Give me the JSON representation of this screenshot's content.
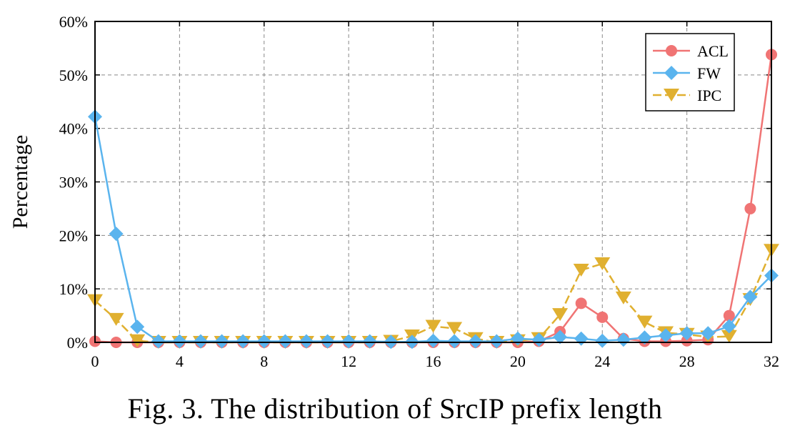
{
  "figure": {
    "caption": "Fig. 3. The distribution of SrcIP prefix length"
  },
  "chart_data": {
    "type": "line",
    "ylabel": "Percentage",
    "xlabel": "",
    "xlim": [
      0,
      32
    ],
    "ylim": [
      0,
      60
    ],
    "x_ticks": [
      0,
      4,
      8,
      12,
      16,
      20,
      24,
      28,
      32
    ],
    "y_ticks": [
      0,
      10,
      20,
      30,
      40,
      50,
      60
    ],
    "y_tick_suffix": "%",
    "grid": true,
    "legend_position": "top-right",
    "x": [
      0,
      1,
      2,
      3,
      4,
      5,
      6,
      7,
      8,
      9,
      10,
      11,
      12,
      13,
      14,
      15,
      16,
      17,
      18,
      19,
      20,
      21,
      22,
      23,
      24,
      25,
      26,
      27,
      28,
      29,
      30,
      31,
      32
    ],
    "series": [
      {
        "name": "ACL",
        "color": "#f07474",
        "marker": "circle",
        "dash": "solid",
        "values": [
          0.2,
          0,
          0,
          0,
          0,
          0,
          0,
          0,
          0,
          0,
          0,
          0,
          0,
          0,
          0,
          0,
          0,
          0,
          0,
          0,
          0,
          0.2,
          2,
          7.3,
          4.7,
          0.7,
          0.2,
          0.2,
          0.3,
          0.5,
          5,
          25,
          53.8
        ]
      },
      {
        "name": "FW",
        "color": "#5ab4ee",
        "marker": "diamond",
        "dash": "solid",
        "values": [
          42.2,
          20.3,
          2.9,
          0.2,
          0.2,
          0.2,
          0.2,
          0.2,
          0.2,
          0.2,
          0.2,
          0.2,
          0.2,
          0.2,
          0.1,
          0.1,
          0.3,
          0.2,
          0.2,
          0.2,
          0.7,
          0.5,
          1,
          0.7,
          0.3,
          0.5,
          0.9,
          1.3,
          1.7,
          1.7,
          3,
          8.5,
          12.5
        ]
      },
      {
        "name": "IPC",
        "color": "#e0b030",
        "marker": "triangle-down",
        "dash": "dashed",
        "values": [
          7.8,
          4.3,
          0.3,
          0,
          0,
          0,
          0,
          0,
          0,
          0,
          0,
          0,
          0,
          0,
          0.2,
          1.2,
          3,
          2.6,
          0.7,
          0,
          0.3,
          0.7,
          5.2,
          13.5,
          14.7,
          8.3,
          3.8,
          1.8,
          1.5,
          1,
          1.1,
          8,
          17.2
        ]
      }
    ]
  }
}
